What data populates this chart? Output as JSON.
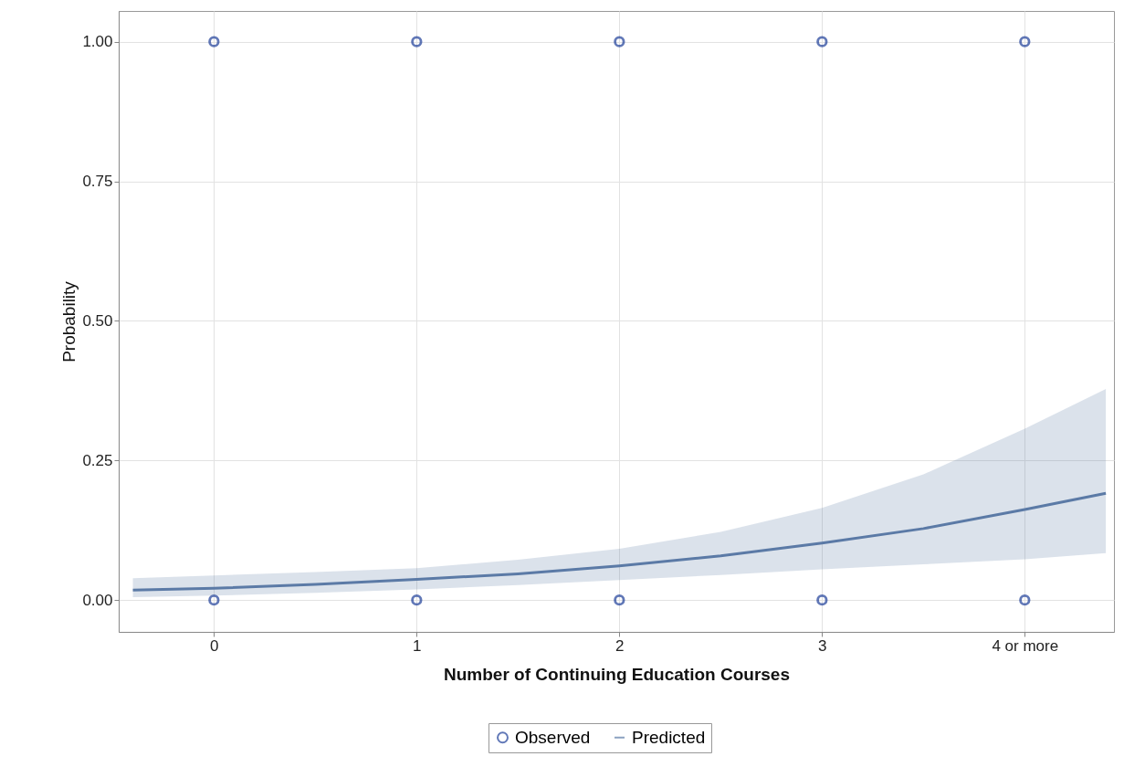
{
  "chart_data": {
    "type": "scatter",
    "xlabel": "Number of Continuing Education Courses",
    "ylabel": "Probability",
    "xlim": [
      -0.47,
      4.44
    ],
    "ylim": [
      -0.057,
      1.055
    ],
    "xticks": [
      0,
      1,
      2,
      3,
      {
        "value": 4,
        "label": "4 or more"
      }
    ],
    "yticks": [
      {
        "value": 0,
        "label": "0.00"
      },
      0.25,
      {
        "value": 0.5,
        "label": "0.50"
      },
      0.75,
      {
        "value": 1,
        "label": "1.00"
      }
    ],
    "grid": true,
    "legend": "bottom",
    "series": [
      {
        "name": "Observed",
        "marker": "circle",
        "color": "#1f3f99",
        "x": [
          0,
          0,
          1,
          1,
          2,
          2,
          3,
          3,
          4,
          4
        ],
        "values": [
          1,
          0,
          1,
          0,
          1,
          0,
          1,
          0,
          1,
          0
        ]
      },
      {
        "name": "Predicted",
        "type": "line",
        "color": "#5b7aa6",
        "x": [
          -0.4,
          0,
          0.5,
          1,
          1.5,
          2,
          2.5,
          3,
          3.5,
          4,
          4.4
        ],
        "values": [
          0.018,
          0.021,
          0.028,
          0.037,
          0.047,
          0.061,
          0.079,
          0.102,
          0.128,
          0.162,
          0.191
        ],
        "lower": [
          0.005,
          0.008,
          0.013,
          0.019,
          0.027,
          0.036,
          0.045,
          0.055,
          0.064,
          0.073,
          0.084
        ],
        "upper": [
          0.039,
          0.044,
          0.05,
          0.057,
          0.072,
          0.092,
          0.122,
          0.165,
          0.225,
          0.307,
          0.378
        ]
      }
    ]
  }
}
